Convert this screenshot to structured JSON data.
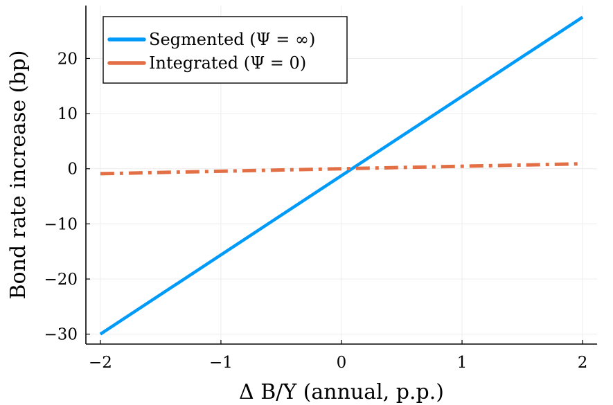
{
  "chart_data": {
    "type": "line",
    "title": "",
    "xlabel": "Δ B/Y (annual, p.p.)",
    "ylabel": "Bond rate increase (bp)",
    "xlim": [
      -2.12,
      2.12
    ],
    "ylim": [
      -31.8,
      29.6
    ],
    "xticks": [
      -2,
      -1,
      0,
      1,
      2
    ],
    "xtick_labels": [
      "−2",
      "−1",
      "0",
      "1",
      "2"
    ],
    "yticks": [
      -30,
      -20,
      -10,
      0,
      10,
      20
    ],
    "ytick_labels": [
      "−30",
      "−20",
      "−10",
      "0",
      "10",
      "20"
    ],
    "grid": true,
    "legend_position": "top-left",
    "series": [
      {
        "name": "Segmented (Ψ = ∞)",
        "color": "#009af9",
        "style": "solid",
        "x": [
          -2,
          2
        ],
        "y": [
          -30,
          27.5
        ]
      },
      {
        "name": "Integrated (Ψ = 0)",
        "color": "#e26f46",
        "style": "dashdot",
        "x": [
          -2,
          2
        ],
        "y": [
          -0.9,
          0.9
        ]
      }
    ]
  }
}
